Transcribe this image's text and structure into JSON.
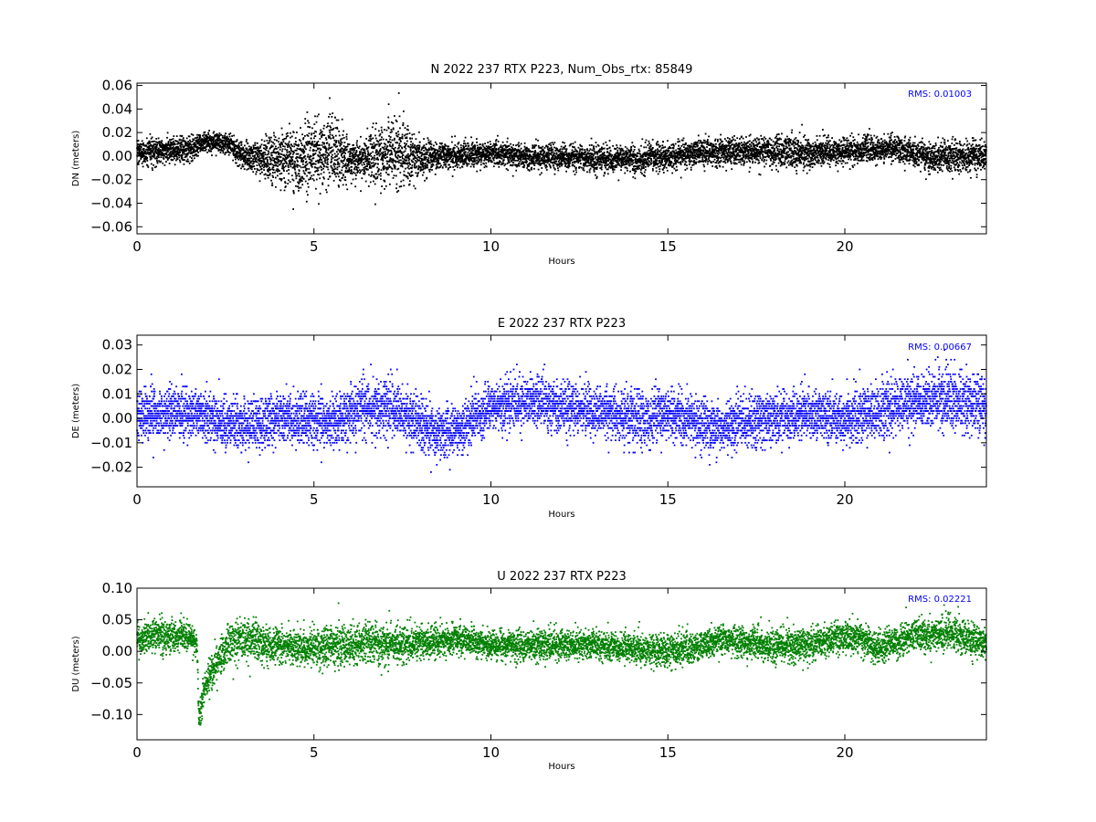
{
  "chart_data": [
    {
      "type": "scatter",
      "title": "N 2022 237 RTX  P223, Num_Obs_rtx: 85849",
      "xlabel": "Hours",
      "ylabel": "DN (meters)",
      "xlim": [
        0,
        24
      ],
      "ylim": [
        -0.066,
        0.062
      ],
      "xticks": [
        "0",
        "5",
        "10",
        "15",
        "20"
      ],
      "xtick_values": [
        0,
        5,
        10,
        15,
        20
      ],
      "yticks": [
        "0.06",
        "0.04",
        "0.02",
        "0.00",
        "−0.02",
        "−0.04",
        "−0.06"
      ],
      "ytick_values": [
        0.06,
        0.04,
        0.02,
        0.0,
        -0.02,
        -0.04,
        -0.06
      ],
      "rms_label": "RMS:  0.01003",
      "color": "#000000",
      "grid": false,
      "envelope_x": [
        0,
        0.5,
        1.0,
        1.5,
        1.7,
        2.0,
        2.5,
        3.0,
        3.5,
        4.0,
        4.5,
        5.0,
        5.3,
        5.6,
        6.0,
        6.5,
        7.0,
        7.3,
        7.6,
        8.0,
        8.5,
        9.0,
        10.0,
        11.0,
        12.0,
        13.0,
        14.0,
        15.0,
        16.0,
        17.0,
        18.0,
        19.0,
        20.0,
        21.0,
        21.5,
        22.0,
        22.5,
        23.0,
        23.5,
        24.0
      ],
      "envelope_center": [
        0.003,
        0.004,
        0.005,
        0.006,
        0.01,
        0.012,
        0.012,
        0.0,
        -0.002,
        -0.004,
        -0.003,
        0.003,
        0.004,
        0.001,
        -0.004,
        -0.002,
        0.003,
        0.004,
        0.001,
        -0.002,
        0.0,
        0.001,
        0.002,
        -0.001,
        0.0,
        -0.002,
        -0.003,
        0.0,
        0.003,
        0.004,
        0.004,
        0.003,
        0.004,
        0.006,
        0.007,
        0.001,
        -0.002,
        0.0,
        -0.001,
        -0.001
      ],
      "envelope_halfwidth": [
        0.012,
        0.012,
        0.012,
        0.012,
        0.01,
        0.01,
        0.01,
        0.012,
        0.016,
        0.024,
        0.03,
        0.034,
        0.036,
        0.03,
        0.018,
        0.02,
        0.03,
        0.035,
        0.03,
        0.018,
        0.012,
        0.012,
        0.012,
        0.012,
        0.012,
        0.012,
        0.012,
        0.012,
        0.012,
        0.012,
        0.015,
        0.015,
        0.012,
        0.012,
        0.012,
        0.012,
        0.014,
        0.014,
        0.014,
        0.014
      ]
    },
    {
      "type": "scatter",
      "title": "E 2022 237 RTX  P223",
      "xlabel": "Hours",
      "ylabel": "DE (meters)",
      "xlim": [
        0,
        24
      ],
      "ylim": [
        -0.028,
        0.034
      ],
      "xticks": [
        "0",
        "5",
        "10",
        "15",
        "20"
      ],
      "xtick_values": [
        0,
        5,
        10,
        15,
        20
      ],
      "yticks": [
        "0.03",
        "0.02",
        "0.01",
        "0.00",
        "−0.01",
        "−0.02"
      ],
      "ytick_values": [
        0.03,
        0.02,
        0.01,
        0.0,
        -0.01,
        -0.02
      ],
      "rms_label": "RMS:  0.00667",
      "color": "#0000ff",
      "grid": false,
      "envelope_x": [
        0,
        1.0,
        1.7,
        2.0,
        2.5,
        3.0,
        3.5,
        4.0,
        4.5,
        5.0,
        5.5,
        6.0,
        6.5,
        7.0,
        7.5,
        8.0,
        8.5,
        9.0,
        9.5,
        10.0,
        10.5,
        11.0,
        11.5,
        12.0,
        13.0,
        14.0,
        14.5,
        15.0,
        15.5,
        16.0,
        16.5,
        17.0,
        18.0,
        19.0,
        20.0,
        21.0,
        21.5,
        22.0,
        22.5,
        23.0,
        23.5,
        24.0
      ],
      "envelope_center": [
        0.002,
        0.002,
        0.002,
        0.0,
        -0.002,
        -0.003,
        -0.002,
        0.0,
        0.0,
        -0.001,
        -0.002,
        0.002,
        0.004,
        0.004,
        0.002,
        -0.002,
        -0.006,
        -0.005,
        0.0,
        0.004,
        0.006,
        0.007,
        0.006,
        0.004,
        0.003,
        0.0,
        0.0,
        0.002,
        0.0,
        -0.002,
        -0.004,
        -0.002,
        0.001,
        0.001,
        0.0,
        0.003,
        0.006,
        0.007,
        0.008,
        0.008,
        0.006,
        0.005
      ],
      "envelope_halfwidth": [
        0.011,
        0.011,
        0.011,
        0.011,
        0.012,
        0.012,
        0.011,
        0.011,
        0.011,
        0.012,
        0.012,
        0.012,
        0.013,
        0.013,
        0.012,
        0.012,
        0.011,
        0.011,
        0.011,
        0.011,
        0.011,
        0.011,
        0.011,
        0.011,
        0.011,
        0.012,
        0.013,
        0.012,
        0.011,
        0.011,
        0.011,
        0.011,
        0.011,
        0.011,
        0.012,
        0.012,
        0.012,
        0.012,
        0.013,
        0.013,
        0.013,
        0.013
      ]
    },
    {
      "type": "scatter",
      "title": "U 2022 237 RTX  P223",
      "xlabel": "Hours",
      "ylabel": "DU (meters)",
      "xlim": [
        0,
        24
      ],
      "ylim": [
        -0.14,
        0.1
      ],
      "xticks": [
        "0",
        "5",
        "10",
        "15",
        "20"
      ],
      "xtick_values": [
        0,
        5,
        10,
        15,
        20
      ],
      "yticks": [
        "0.10",
        "0.05",
        "0.00",
        "−0.05",
        "−0.10"
      ],
      "ytick_values": [
        0.1,
        0.05,
        0.0,
        -0.05,
        -0.1
      ],
      "rms_label": "RMS:  0.02221",
      "color": "#008000",
      "grid": false,
      "envelope_x": [
        0,
        0.5,
        1.0,
        1.5,
        1.7,
        1.75,
        1.9,
        2.2,
        2.6,
        3.0,
        3.5,
        4.0,
        5.0,
        6.0,
        6.5,
        7.0,
        8.0,
        9.0,
        10.0,
        11.0,
        12.0,
        13.0,
        14.0,
        15.0,
        16.0,
        16.5,
        17.0,
        18.0,
        19.0,
        20.0,
        20.5,
        21.0,
        21.5,
        22.0,
        22.5,
        23.0,
        23.5,
        24.0
      ],
      "envelope_center": [
        0.02,
        0.025,
        0.025,
        0.02,
        0.01,
        -0.11,
        -0.06,
        -0.02,
        0.01,
        0.02,
        0.015,
        0.01,
        0.005,
        0.01,
        0.015,
        0.01,
        0.015,
        0.02,
        0.01,
        0.01,
        0.01,
        0.01,
        0.005,
        0.0,
        0.01,
        0.02,
        0.015,
        0.01,
        0.01,
        0.025,
        0.02,
        0.005,
        0.015,
        0.025,
        0.025,
        0.03,
        0.02,
        0.01
      ],
      "envelope_halfwidth": [
        0.028,
        0.028,
        0.028,
        0.025,
        0.02,
        0.03,
        0.025,
        0.03,
        0.035,
        0.04,
        0.035,
        0.03,
        0.032,
        0.035,
        0.035,
        0.033,
        0.028,
        0.028,
        0.025,
        0.028,
        0.025,
        0.025,
        0.025,
        0.028,
        0.025,
        0.025,
        0.025,
        0.028,
        0.028,
        0.03,
        0.03,
        0.028,
        0.028,
        0.028,
        0.03,
        0.03,
        0.03,
        0.028
      ]
    }
  ]
}
